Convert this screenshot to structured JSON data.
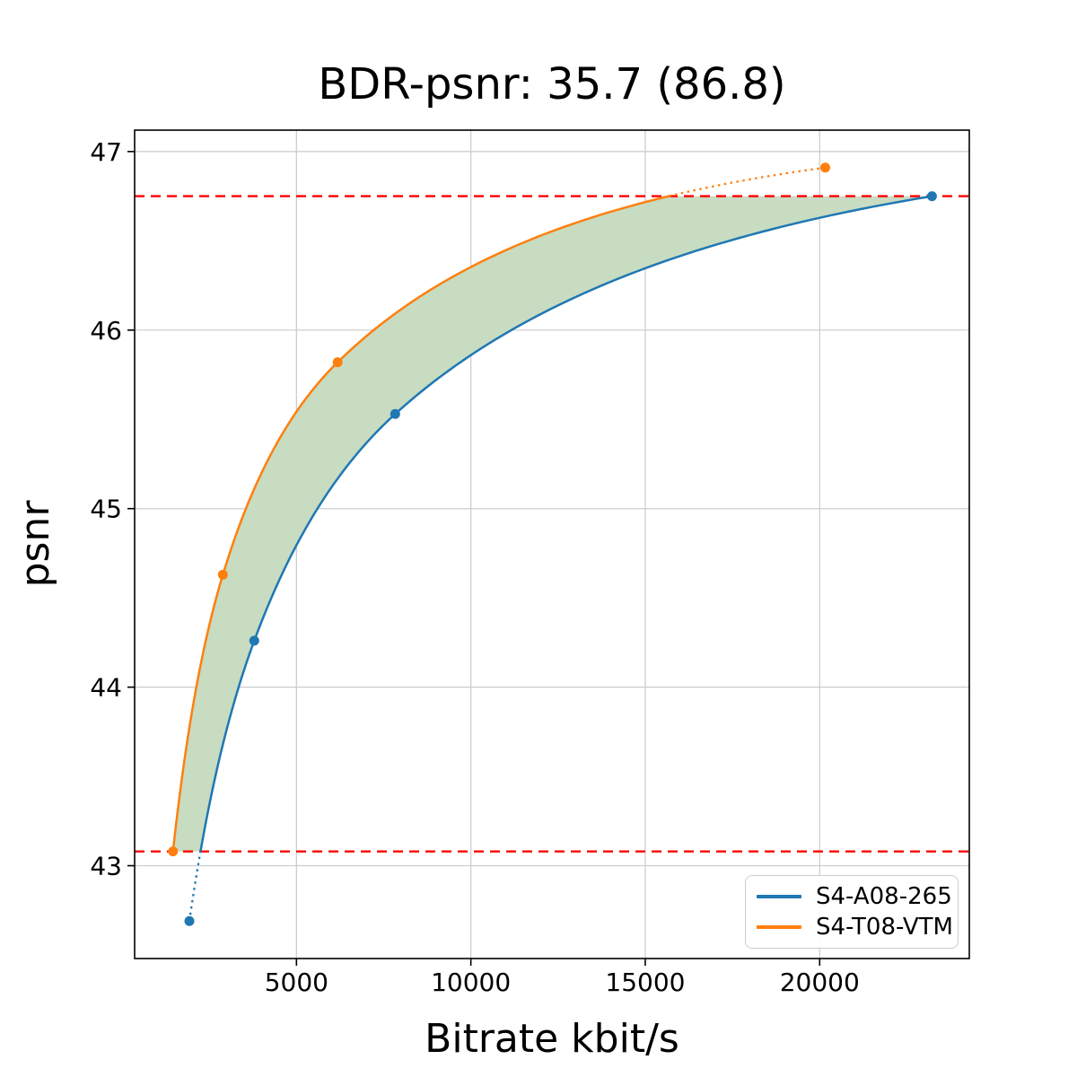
{
  "chart_data": {
    "type": "line",
    "title": "BDR-psnr: 35.7 (86.8)",
    "bdr_value": "35.7",
    "bdr_secondary_value": "86.8",
    "xlabel": "Bitrate kbit/s",
    "ylabel": "psnr",
    "xlim": [
      360,
      24290
    ],
    "ylim": [
      42.48,
      47.12
    ],
    "x_ticks": [
      5000,
      10000,
      15000,
      20000
    ],
    "y_ticks": [
      43,
      44,
      45,
      46,
      47
    ],
    "grid": true,
    "grid_color": "#cbcbcb",
    "background": "#ffffff",
    "legend": {
      "position": "lower right"
    },
    "series": [
      {
        "name": "S4-A08-265",
        "color": "#1f77b4",
        "marker": "circle",
        "points": [
          [
            1930,
            42.69
          ],
          [
            3790,
            44.26
          ],
          [
            7830,
            45.53
          ],
          [
            23220,
            46.75
          ]
        ]
      },
      {
        "name": "S4-T08-VTM",
        "color": "#ff7f0e",
        "marker": "circle",
        "points": [
          [
            1460,
            43.08
          ],
          [
            2890,
            44.63
          ],
          [
            6180,
            45.82
          ],
          [
            20160,
            46.91
          ]
        ]
      }
    ],
    "overlap_band": {
      "low_psnr": 43.08,
      "high_psnr": 46.75,
      "line_color": "#ff0000",
      "line_style": "dashed"
    },
    "fill_between": {
      "color": "#c7dcc1",
      "between": [
        "S4-T08-VTM",
        "S4-A08-265"
      ],
      "psnr_range": [
        43.08,
        46.75
      ]
    }
  }
}
